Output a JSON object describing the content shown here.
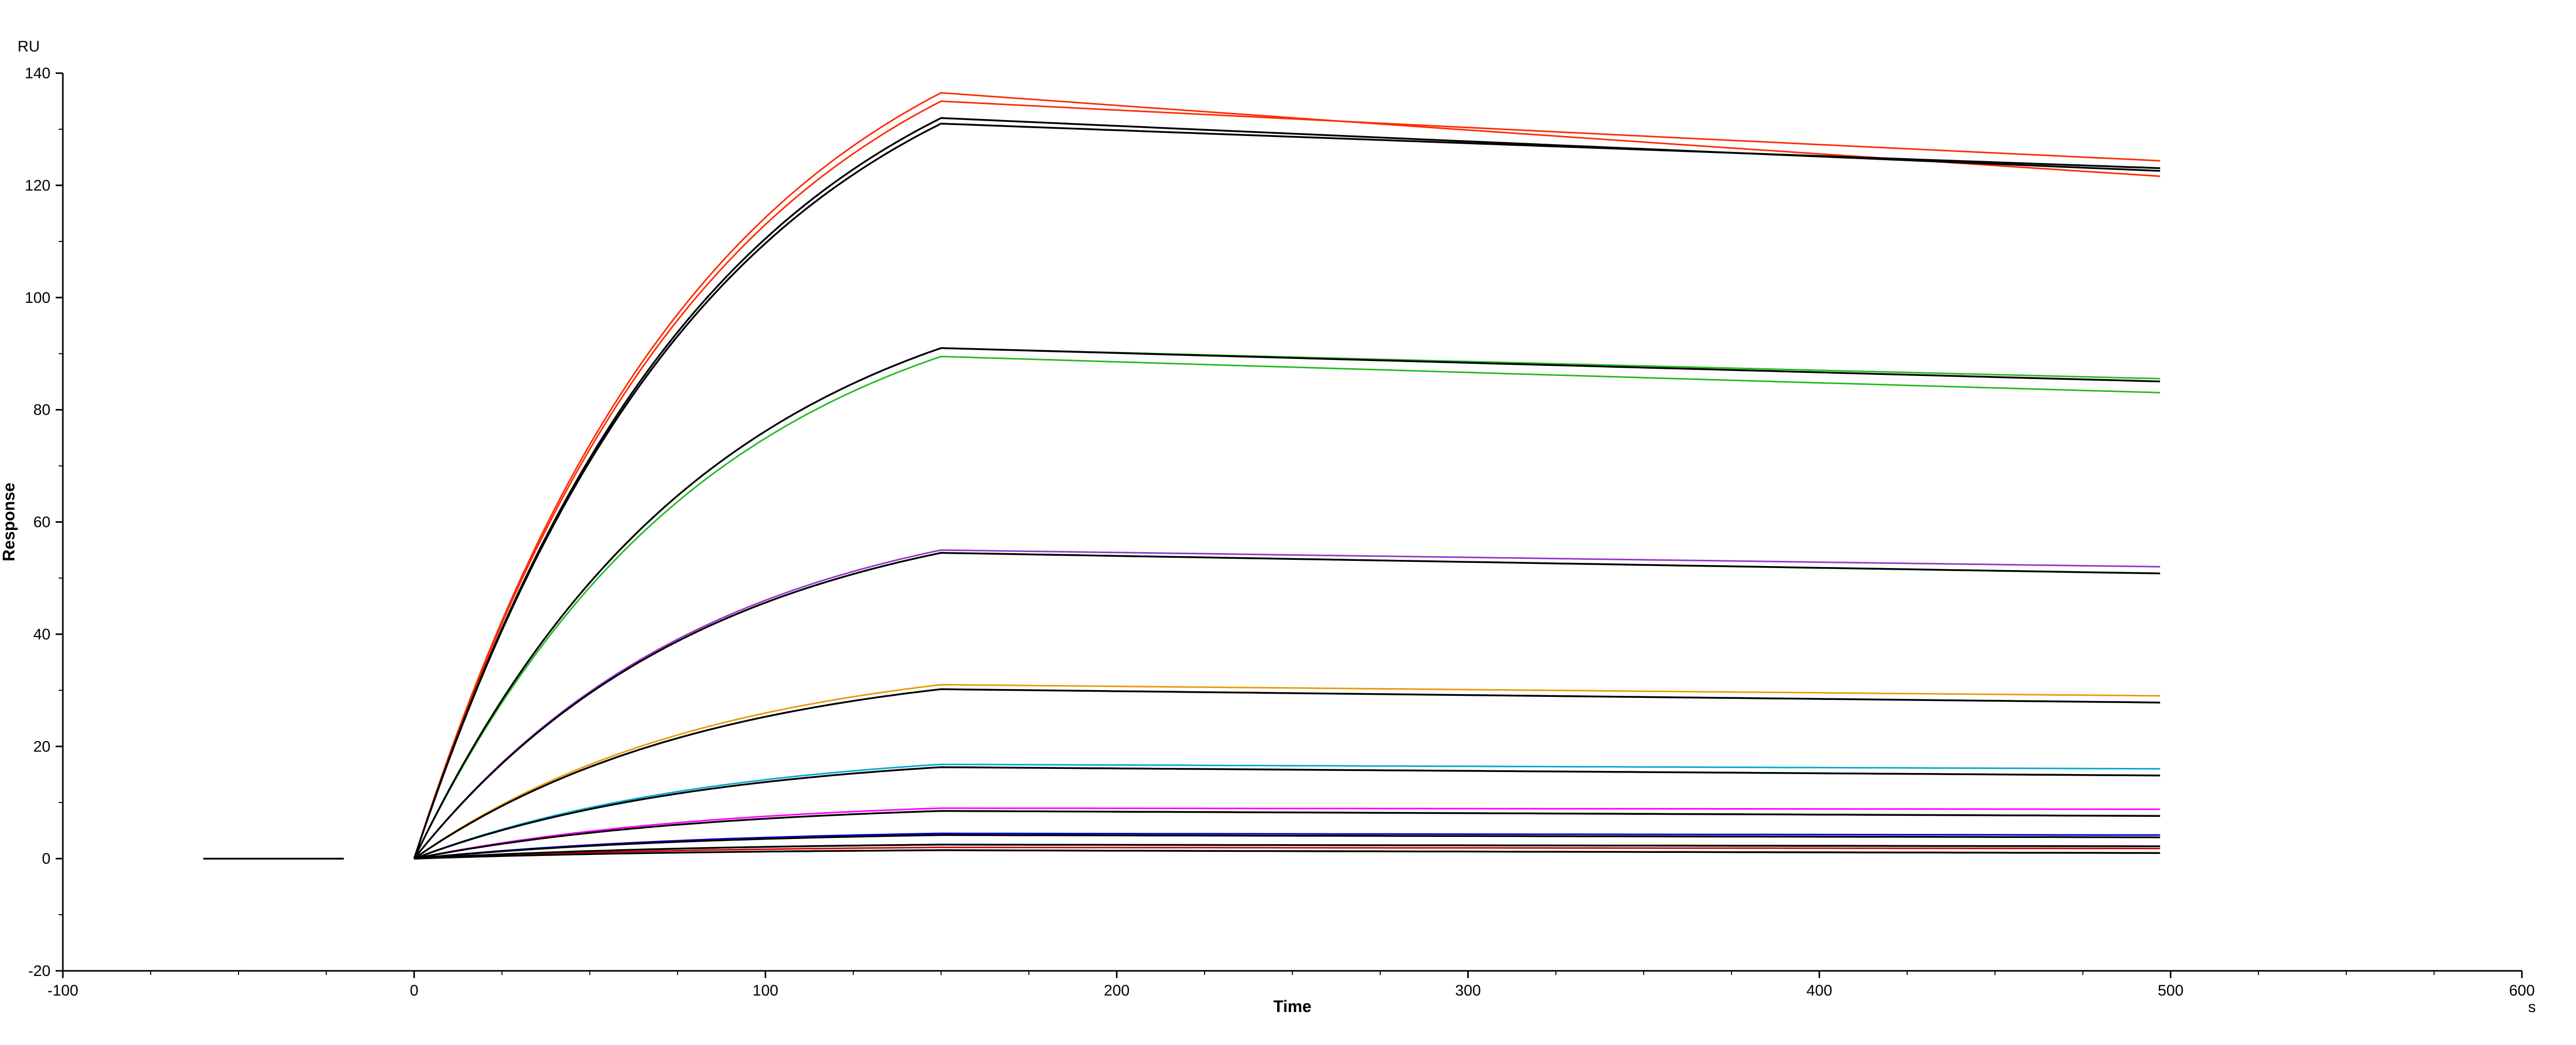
{
  "chart_data": {
    "type": "line",
    "title": "",
    "xlabel": "Time",
    "ylabel": "Response",
    "x_unit": "s",
    "y_unit": "RU",
    "xlim": [
      -100,
      600
    ],
    "ylim": [
      -20,
      140
    ],
    "x_ticks": [
      -100,
      0,
      100,
      200,
      300,
      400,
      500,
      600
    ],
    "y_ticks": [
      -20,
      0,
      20,
      40,
      60,
      80,
      100,
      120,
      140
    ],
    "grid": false,
    "legend": "none",
    "baseline": {
      "x": [
        -60,
        -20
      ],
      "y": [
        0,
        0
      ]
    },
    "injection": {
      "start": 0,
      "end": 150,
      "stop": 500
    },
    "series": [
      {
        "color": "#ff2a00",
        "peak": 136.5,
        "end": 121.5
      },
      {
        "color": "#ff2a00",
        "peak": 135.0,
        "end": 124.3
      },
      {
        "color": "#000000",
        "peak": 132.0,
        "end": 122.5
      },
      {
        "color": "#000000",
        "peak": 131.0,
        "end": 123.0
      },
      {
        "color": "#22bb22",
        "peak": 89.5,
        "end": 83.0
      },
      {
        "color": "#22bb22",
        "peak": 91.0,
        "end": 85.5
      },
      {
        "color": "#000000",
        "peak": 91.0,
        "end": 85.0
      },
      {
        "color": "#9933cc",
        "peak": 55.0,
        "end": 52.0
      },
      {
        "color": "#000000",
        "peak": 54.5,
        "end": 50.8
      },
      {
        "color": "#e89a00",
        "peak": 31.0,
        "end": 29.0
      },
      {
        "color": "#000000",
        "peak": 30.2,
        "end": 27.8
      },
      {
        "color": "#00aacc",
        "peak": 16.8,
        "end": 16.0
      },
      {
        "color": "#000000",
        "peak": 16.3,
        "end": 14.8
      },
      {
        "color": "#ff00ff",
        "peak": 9.0,
        "end": 8.8
      },
      {
        "color": "#000000",
        "peak": 8.5,
        "end": 7.6
      },
      {
        "color": "#0000cc",
        "peak": 4.5,
        "end": 4.2
      },
      {
        "color": "#000000",
        "peak": 4.2,
        "end": 3.8
      },
      {
        "color": "#cc0000",
        "peak": 2.0,
        "end": 1.8
      },
      {
        "color": "#000000",
        "peak": 2.5,
        "end": 2.2
      },
      {
        "color": "#000000",
        "peak": 1.5,
        "end": 1.0
      }
    ]
  }
}
